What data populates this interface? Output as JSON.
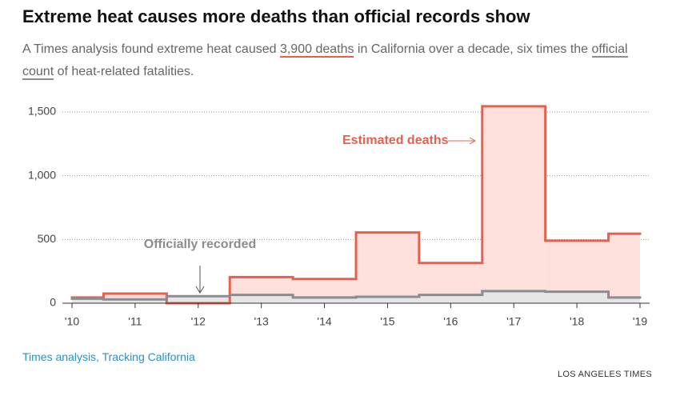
{
  "chart_data": {
    "type": "step",
    "title": "Extreme heat causes more deaths than official records show",
    "subtitle_parts": [
      "A Times analysis found extreme heat caused ",
      "3,900 deaths",
      " in California over a decade, six times the ",
      "official count",
      " of heat-related fatalities."
    ],
    "categories": [
      "'10",
      "'11",
      "'12",
      "'13",
      "'14",
      "'15",
      "'16",
      "'17",
      "'18",
      "'19"
    ],
    "series": [
      {
        "name": "Estimated deaths",
        "color": "#e8604c",
        "fill": "#fde0dc",
        "values": [
          45,
          75,
          0,
          205,
          190,
          555,
          315,
          1545,
          490,
          545
        ]
      },
      {
        "name": "Officially recorded",
        "color": "#8a8d91",
        "fill": "#e6e6e6",
        "values": [
          35,
          30,
          55,
          65,
          45,
          50,
          65,
          95,
          90,
          45
        ]
      }
    ],
    "ylim": [
      0,
      1500
    ],
    "yticks": [
      0,
      500,
      {
        "value": 1000,
        "label": "1,000"
      },
      {
        "value": 1500,
        "label": "1,500"
      }
    ],
    "grid": true,
    "source": "Times analysis, Tracking California",
    "credit": "LOS ANGELES TIMES"
  }
}
